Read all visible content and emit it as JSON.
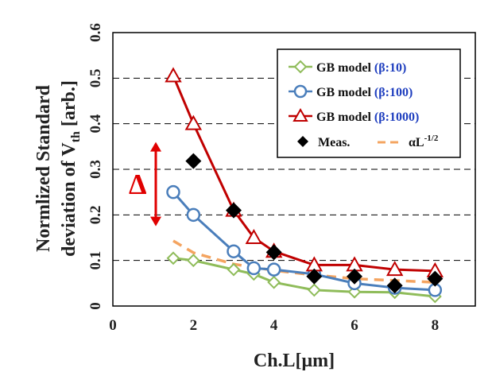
{
  "chart_data": {
    "type": "line",
    "xlabel": "Ch.L[μm]",
    "ylabel_line1": "Normlized Standard",
    "ylabel_line2_prefix": "deviation of V",
    "ylabel_line2_sub": "th",
    "ylabel_line2_suffix": " [arb.]",
    "xlim": [
      0,
      9
    ],
    "ylim": [
      0,
      0.6
    ],
    "x_ticks": [
      "0",
      "2",
      "4",
      "6",
      "8"
    ],
    "x_tick_values": [
      0,
      2,
      4,
      6,
      8
    ],
    "y_ticks": [
      "0",
      "0.1",
      "0.2",
      "0.3",
      "0.4",
      "0.5",
      "0.6"
    ],
    "y_tick_values": [
      0,
      0.1,
      0.2,
      0.3,
      0.4,
      0.5,
      0.6
    ],
    "grid": "horizontal-dashed",
    "legend_position": "top-right",
    "annotation": "Δ",
    "annotation_range": [
      0.175,
      0.36
    ],
    "series": [
      {
        "name_prefix": "GB model ",
        "name_beta": "(β:10)",
        "marker": "diamond-open",
        "color": "#8fbc5a",
        "x": [
          1.5,
          2,
          3,
          3.5,
          4,
          5,
          6,
          7,
          8
        ],
        "y": [
          0.105,
          0.1,
          0.08,
          0.07,
          0.052,
          0.035,
          0.031,
          0.03,
          0.021
        ]
      },
      {
        "name_prefix": "GB model ",
        "name_beta": "(β:100)",
        "marker": "circle-open",
        "color": "#4a7ebb",
        "x": [
          1.5,
          2,
          3,
          3.5,
          4,
          5,
          6,
          7,
          8
        ],
        "y": [
          0.25,
          0.2,
          0.12,
          0.083,
          0.08,
          0.07,
          0.05,
          0.04,
          0.035
        ]
      },
      {
        "name_prefix": "GB model ",
        "name_beta": "(β:1000)",
        "marker": "triangle-open",
        "color": "#c00000",
        "x": [
          1.5,
          2,
          3,
          3.5,
          4,
          5,
          6,
          7,
          8
        ],
        "y": [
          0.505,
          0.4,
          0.21,
          0.15,
          0.12,
          0.09,
          0.09,
          0.08,
          0.077
        ]
      },
      {
        "name": "Meas.",
        "marker": "diamond-filled",
        "color": "#000000",
        "x": [
          2,
          3,
          4,
          5,
          6,
          7,
          8
        ],
        "y": [
          0.318,
          0.21,
          0.118,
          0.065,
          0.065,
          0.045,
          0.06
        ]
      },
      {
        "name_main": "αL",
        "name_sup": "-1/2",
        "marker": "dashed-line",
        "color": "#f4a460",
        "x": [
          1.5,
          2,
          3,
          4,
          5,
          6,
          7,
          8
        ],
        "y": [
          0.143,
          0.117,
          0.092,
          0.078,
          0.068,
          0.06,
          0.056,
          0.052
        ]
      }
    ]
  }
}
